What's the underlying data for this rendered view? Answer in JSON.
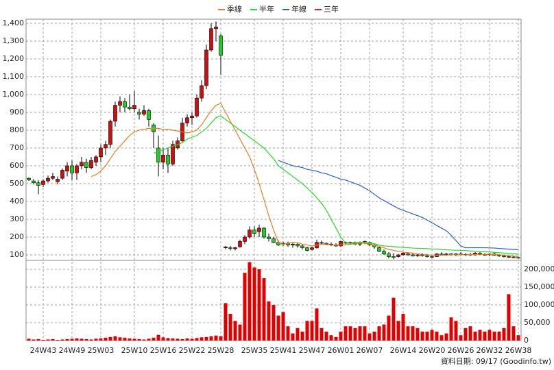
{
  "chart_data": [
    {
      "type": "candlestick",
      "up_color": "#cc1010",
      "down_color": "#22cc22",
      "open": [
        530,
        515,
        505,
        495,
        515,
        530,
        510,
        530,
        570,
        600,
        560,
        600,
        620,
        590,
        620,
        650,
        700,
        720,
        850,
        940,
        960,
        930,
        920,
        900,
        890,
        910,
        830,
        700,
        620,
        660,
        610,
        700,
        740,
        840,
        870,
        880,
        980,
        1050,
        1250,
        1370,
        1330,
        140,
        140,
        135,
        145,
        175,
        200,
        240,
        230,
        250,
        200,
        190,
        170,
        160,
        165,
        155,
        160,
        150,
        140,
        130,
        140,
        170,
        165,
        160,
        155,
        150,
        170,
        165,
        170,
        160,
        170,
        170,
        155,
        140,
        120,
        105,
        90,
        90,
        100,
        105,
        100,
        95,
        100,
        95,
        90,
        90,
        105,
        100,
        105,
        100,
        105,
        100,
        103,
        100,
        110,
        102,
        100,
        105,
        98,
        95,
        90,
        88,
        85
      ],
      "high": [
        535,
        525,
        520,
        525,
        545,
        560,
        540,
        585,
        620,
        630,
        610,
        650,
        640,
        650,
        660,
        720,
        740,
        860,
        960,
        990,
        980,
        1000,
        1020,
        920,
        940,
        920,
        840,
        770,
        700,
        700,
        740,
        760,
        870,
        890,
        900,
        1000,
        1080,
        1280,
        1400,
        1410,
        1340,
        150,
        150,
        145,
        185,
        210,
        260,
        260,
        270,
        255,
        220,
        200,
        180,
        175,
        175,
        170,
        165,
        160,
        145,
        145,
        185,
        180,
        170,
        170,
        165,
        180,
        175,
        175,
        175,
        175,
        180,
        175,
        160,
        145,
        130,
        115,
        110,
        105,
        115,
        115,
        110,
        105,
        110,
        105,
        100,
        110,
        115,
        112,
        110,
        110,
        115,
        110,
        112,
        115,
        115,
        110,
        110,
        115,
        105,
        100,
        95,
        92,
        90
      ],
      "low": [
        515,
        495,
        440,
        480,
        505,
        520,
        495,
        520,
        540,
        520,
        520,
        580,
        560,
        580,
        600,
        620,
        660,
        700,
        820,
        900,
        900,
        910,
        900,
        860,
        880,
        820,
        700,
        540,
        580,
        560,
        600,
        690,
        730,
        820,
        830,
        870,
        960,
        1030,
        1240,
        1300,
        1110,
        130,
        125,
        125,
        140,
        160,
        190,
        200,
        200,
        190,
        175,
        165,
        150,
        150,
        145,
        140,
        140,
        130,
        120,
        125,
        135,
        160,
        155,
        150,
        145,
        145,
        160,
        155,
        155,
        150,
        160,
        150,
        135,
        115,
        100,
        80,
        75,
        85,
        95,
        95,
        90,
        88,
        90,
        85,
        82,
        88,
        95,
        95,
        95,
        92,
        95,
        92,
        95,
        95,
        98,
        95,
        92,
        95,
        88,
        85,
        82,
        80,
        80
      ],
      "close": [
        520,
        505,
        490,
        515,
        530,
        540,
        525,
        575,
        600,
        560,
        600,
        620,
        590,
        630,
        650,
        700,
        720,
        850,
        940,
        960,
        930,
        920,
        940,
        890,
        910,
        860,
        790,
        620,
        660,
        610,
        720,
        740,
        840,
        870,
        880,
        980,
        1050,
        1250,
        1370,
        1380,
        1220,
        145,
        135,
        140,
        175,
        200,
        240,
        220,
        250,
        200,
        190,
        170,
        155,
        165,
        155,
        160,
        150,
        140,
        125,
        140,
        170,
        165,
        160,
        155,
        150,
        175,
        165,
        170,
        160,
        170,
        175,
        155,
        145,
        120,
        105,
        90,
        85,
        100,
        110,
        100,
        95,
        100,
        95,
        90,
        88,
        105,
        100,
        105,
        100,
        105,
        100,
        103,
        100,
        110,
        102,
        100,
        105,
        98,
        95,
        90,
        88,
        85,
        84
      ],
      "series": [
        {
          "name": "季線",
          "color": "#f07a20",
          "values": [
            null,
            null,
            null,
            null,
            null,
            null,
            null,
            null,
            null,
            null,
            null,
            null,
            null,
            540,
            550,
            570,
            600,
            640,
            680,
            710,
            740,
            770,
            790,
            800,
            805,
            810,
            810,
            810,
            805,
            805,
            800,
            795,
            790,
            785,
            790,
            800,
            830,
            870,
            910,
            940,
            950,
            900,
            850,
            800,
            750,
            700,
            650,
            580,
            500,
            410,
            320,
            240,
            170,
            160,
            165,
            170,
            168,
            160,
            155,
            150,
            155,
            160,
            158,
            155,
            155,
            155,
            158,
            160,
            162,
            165,
            165,
            160,
            155,
            148,
            140,
            130,
            125,
            120,
            115,
            112,
            110,
            105,
            103,
            100,
            98,
            98,
            98,
            98,
            100,
            100,
            100,
            100,
            102,
            102,
            103,
            103,
            103,
            102,
            100,
            98,
            95,
            93,
            90
          ]
        },
        {
          "name": "半年",
          "color": "#22dd22",
          "values": [
            null,
            null,
            null,
            null,
            null,
            null,
            null,
            null,
            null,
            null,
            null,
            null,
            null,
            null,
            null,
            null,
            null,
            null,
            null,
            null,
            null,
            null,
            null,
            null,
            null,
            null,
            670,
            680,
            690,
            700,
            710,
            720,
            730,
            750,
            760,
            770,
            790,
            810,
            840,
            870,
            880,
            860,
            840,
            820,
            800,
            780,
            760,
            740,
            720,
            700,
            670,
            640,
            600,
            580,
            560,
            540,
            520,
            500,
            475,
            450,
            420,
            390,
            350,
            300,
            250,
            200,
            165,
            165,
            168,
            170,
            170,
            168,
            162,
            155,
            150,
            148,
            146,
            144,
            142,
            140,
            138,
            137,
            136,
            135,
            133,
            132,
            130,
            128,
            127,
            126,
            125,
            124,
            122,
            120,
            118,
            117,
            116,
            114,
            112,
            110,
            108,
            106,
            105
          ]
        },
        {
          "name": "年線",
          "color": "#2a5fd0",
          "values": [
            null,
            null,
            null,
            null,
            null,
            null,
            null,
            null,
            null,
            null,
            null,
            null,
            null,
            null,
            null,
            null,
            null,
            null,
            null,
            null,
            null,
            null,
            null,
            null,
            null,
            null,
            null,
            null,
            null,
            null,
            null,
            null,
            null,
            null,
            null,
            null,
            null,
            null,
            null,
            null,
            null,
            null,
            null,
            null,
            null,
            null,
            null,
            null,
            null,
            null,
            null,
            null,
            630,
            620,
            610,
            600,
            595,
            590,
            580,
            575,
            570,
            560,
            555,
            545,
            535,
            525,
            520,
            510,
            500,
            490,
            475,
            460,
            440,
            420,
            405,
            390,
            375,
            360,
            350,
            340,
            330,
            320,
            310,
            295,
            280,
            265,
            250,
            235,
            210,
            180,
            150,
            140,
            140,
            140,
            140,
            140,
            139,
            138,
            136,
            134,
            132,
            130,
            130
          ]
        },
        {
          "name": "三年",
          "color": "#e02020",
          "values": [
            null,
            null,
            null,
            null,
            null,
            null,
            null,
            null,
            null,
            null,
            null,
            null,
            null,
            null,
            null,
            null,
            null,
            null,
            null,
            null,
            null,
            null,
            null,
            null,
            null,
            null,
            null,
            null,
            null,
            null,
            null,
            null,
            null,
            null,
            null,
            null,
            null,
            null,
            null,
            null,
            null,
            null,
            null,
            null,
            null,
            null,
            null,
            null,
            null,
            null,
            null,
            null,
            null,
            null,
            null,
            null,
            null,
            null,
            null,
            null,
            null,
            null,
            null,
            null,
            null,
            null,
            null,
            null,
            null,
            null,
            null,
            null,
            null,
            null,
            null,
            null,
            null,
            null,
            null,
            null,
            null,
            null,
            null,
            null,
            null,
            null,
            null,
            null,
            null,
            null,
            null,
            null,
            null,
            null,
            null,
            null,
            null,
            null,
            null,
            null,
            null,
            null,
            null
          ]
        }
      ],
      "ylim": [
        69,
        1423
      ],
      "yticks": [
        100,
        200,
        300,
        400,
        500,
        600,
        700,
        800,
        900,
        {
          "value": 1000,
          "label": "1,000"
        },
        {
          "value": 1100,
          "label": "1,100"
        },
        {
          "value": 1200,
          "label": "1,200"
        },
        {
          "value": 1300,
          "label": "1,300"
        },
        {
          "value": 1400,
          "label": "1,400"
        }
      ],
      "grid": true,
      "legend": "top"
    },
    {
      "type": "bar",
      "color": "#e00000",
      "categories": [
        null,
        null,
        null,
        "24W43",
        null,
        null,
        null,
        null,
        null,
        "24W49",
        null,
        null,
        null,
        null,
        null,
        "25W03",
        null,
        null,
        null,
        null,
        null,
        null,
        "25W10",
        null,
        null,
        null,
        null,
        null,
        "25W16",
        null,
        null,
        null,
        null,
        null,
        "25W22",
        null,
        null,
        null,
        null,
        null,
        "25W28",
        null,
        null,
        null,
        null,
        null,
        null,
        "25W35",
        null,
        null,
        null,
        null,
        null,
        "25W41",
        null,
        null,
        null,
        null,
        null,
        "25W47",
        null,
        null,
        null,
        null,
        null,
        "26W01",
        null,
        null,
        null,
        null,
        null,
        "26W07",
        null,
        null,
        null,
        null,
        null,
        null,
        "26W14",
        null,
        null,
        null,
        null,
        null,
        "26W20",
        null,
        null,
        null,
        null,
        null,
        "26W26",
        null,
        null,
        null,
        null,
        null,
        "26W32",
        null,
        null,
        null,
        null,
        null,
        "26W38"
      ],
      "values": [
        5000,
        3000,
        4000,
        2000,
        3000,
        4000,
        2000,
        3000,
        4000,
        5000,
        6000,
        5000,
        4000,
        3000,
        5000,
        6000,
        8000,
        10000,
        12000,
        9000,
        8000,
        6000,
        5000,
        4000,
        3000,
        5000,
        8000,
        16000,
        9000,
        7000,
        6000,
        5000,
        4000,
        6000,
        5000,
        7000,
        9000,
        10000,
        12000,
        14000,
        12000,
        105000,
        75000,
        55000,
        45000,
        190000,
        220000,
        205000,
        200000,
        175000,
        110000,
        100000,
        70000,
        80000,
        40000,
        20000,
        35000,
        25000,
        55000,
        55000,
        90000,
        35000,
        25000,
        15000,
        10000,
        25000,
        40000,
        40000,
        35000,
        40000,
        40000,
        20000,
        25000,
        40000,
        45000,
        70000,
        120000,
        55000,
        75000,
        40000,
        40000,
        35000,
        25000,
        25000,
        30000,
        25000,
        15000,
        20000,
        65000,
        55000,
        15000,
        35000,
        40000,
        25000,
        30000,
        25000,
        30000,
        25000,
        25000,
        35000,
        130000,
        40000,
        15000
      ],
      "ylim": [
        0,
        225000
      ],
      "yticks": [
        0,
        {
          "value": 50000,
          "label": "50,000"
        },
        {
          "value": 100000,
          "label": "100,000"
        },
        {
          "value": 150000,
          "label": "150,000"
        },
        {
          "value": 200000,
          "label": "200,000"
        }
      ],
      "grid": true,
      "source": "資料日期: 09/17  (Goodinfo.tw)"
    }
  ]
}
